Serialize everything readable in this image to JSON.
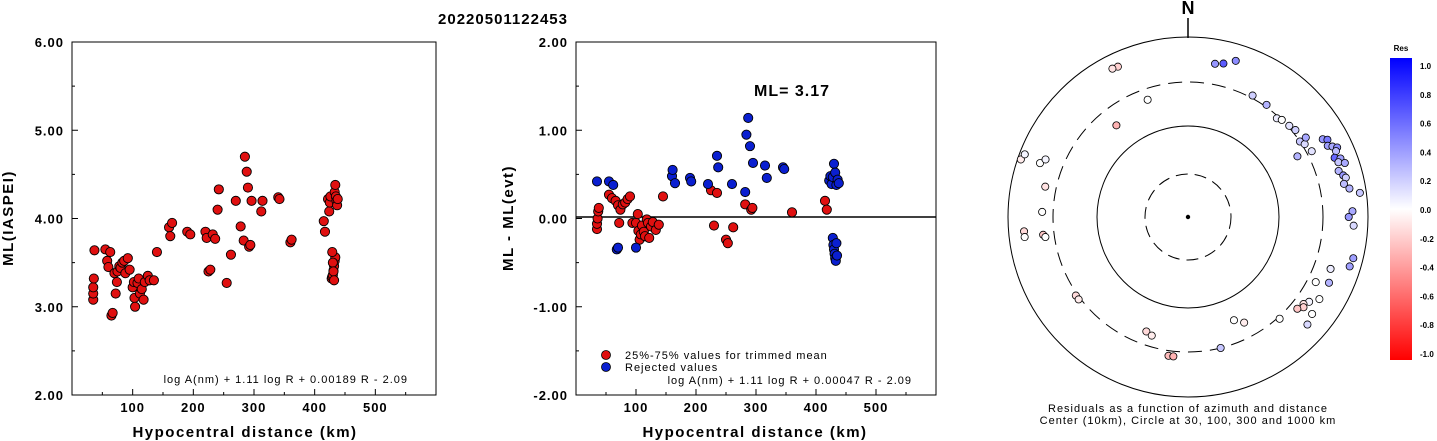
{
  "title": "20220501122453",
  "chart_data": [
    {
      "type": "scatter",
      "xlabel": "Hypocentral distance (km)",
      "ylabel": "ML(IASPEI)",
      "xlim": [
        0,
        600
      ],
      "ylim": [
        2.0,
        6.0
      ],
      "x_ticks": [
        "100",
        "200",
        "300",
        "400",
        "500"
      ],
      "y_ticks": [
        "6.00",
        "5.00",
        "4.00",
        "3.00",
        "2.00"
      ],
      "formula": "log A(nm) + 1.11 log R + 0.00189 R - 2.09",
      "series": [
        {
          "color": "#e01010",
          "points": [
            [
              35,
              3.08
            ],
            [
              35,
              3.15
            ],
            [
              35,
              3.22
            ],
            [
              36,
              3.32
            ],
            [
              37,
              3.64
            ],
            [
              55,
              3.65
            ],
            [
              58,
              3.52
            ],
            [
              60,
              3.45
            ],
            [
              63,
              3.62
            ],
            [
              65,
              2.9
            ],
            [
              67,
              2.93
            ],
            [
              70,
              3.38
            ],
            [
              72,
              3.15
            ],
            [
              74,
              3.28
            ],
            [
              75,
              3.4
            ],
            [
              78,
              3.46
            ],
            [
              80,
              3.44
            ],
            [
              83,
              3.5
            ],
            [
              86,
              3.52
            ],
            [
              88,
              3.38
            ],
            [
              92,
              3.55
            ],
            [
              95,
              3.42
            ],
            [
              100,
              3.22
            ],
            [
              102,
              3.28
            ],
            [
              103,
              3.1
            ],
            [
              104,
              3.0
            ],
            [
              108,
              3.27
            ],
            [
              110,
              3.32
            ],
            [
              112,
              3.15
            ],
            [
              115,
              3.2
            ],
            [
              118,
              3.08
            ],
            [
              120,
              3.28
            ],
            [
              125,
              3.35
            ],
            [
              128,
              3.3
            ],
            [
              135,
              3.3
            ],
            [
              140,
              3.62
            ],
            [
              160,
              3.9
            ],
            [
              162,
              3.8
            ],
            [
              165,
              3.95
            ],
            [
              190,
              3.85
            ],
            [
              195,
              3.82
            ],
            [
              220,
              3.85
            ],
            [
              222,
              3.78
            ],
            [
              225,
              3.4
            ],
            [
              228,
              3.42
            ],
            [
              232,
              3.82
            ],
            [
              236,
              3.77
            ],
            [
              240,
              4.1
            ],
            [
              242,
              4.33
            ],
            [
              255,
              3.27
            ],
            [
              262,
              3.59
            ],
            [
              270,
              4.2
            ],
            [
              278,
              3.91
            ],
            [
              283,
              3.75
            ],
            [
              285,
              4.7
            ],
            [
              288,
              4.53
            ],
            [
              290,
              4.35
            ],
            [
              292,
              3.68
            ],
            [
              294,
              3.7
            ],
            [
              296,
              4.2
            ],
            [
              312,
              4.08
            ],
            [
              314,
              4.2
            ],
            [
              340,
              4.24
            ],
            [
              342,
              4.22
            ],
            [
              360,
              3.73
            ],
            [
              362,
              3.76
            ],
            [
              415,
              3.97
            ],
            [
              417,
              3.85
            ],
            [
              422,
              4.22
            ],
            [
              424,
              4.08
            ],
            [
              425,
              4.18
            ],
            [
              426,
              4.25
            ],
            [
              428,
              3.32
            ],
            [
              429,
              3.34
            ],
            [
              430,
              3.36
            ],
            [
              431,
              3.41
            ],
            [
              432,
              3.46
            ],
            [
              433,
              3.52
            ],
            [
              434,
              3.56
            ],
            [
              429,
              3.62
            ],
            [
              430,
              3.5
            ],
            [
              431,
              3.4
            ],
            [
              432,
              3.3
            ],
            [
              433,
              4.3
            ],
            [
              434,
              4.38
            ],
            [
              435,
              4.25
            ],
            [
              436,
              4.2
            ],
            [
              437,
              4.15
            ],
            [
              438,
              4.22
            ]
          ]
        }
      ]
    },
    {
      "type": "scatter",
      "xlabel": "Hypocentral distance (km)",
      "ylabel": "ML - ML(evt)",
      "xlim": [
        0,
        600
      ],
      "ylim": [
        -2.0,
        2.0
      ],
      "x_ticks": [
        "100",
        "200",
        "300",
        "400",
        "500"
      ],
      "y_ticks": [
        "2.00",
        "1.00",
        "0.00",
        "-1.00",
        "-2.00"
      ],
      "annotation": "ML= 3.17",
      "legend": [
        "25%-75% values for trimmed mean",
        "Rejected values"
      ],
      "formula": "log A(nm) + 1.11 log R + 0.00047 R - 2.09",
      "series": [
        {
          "name": "25%-75% values for trimmed mean",
          "color": "#e01010",
          "points": [
            [
              35,
              -0.12
            ],
            [
              35,
              -0.06
            ],
            [
              36,
              0.0
            ],
            [
              37,
              0.08
            ],
            [
              38,
              0.12
            ],
            [
              55,
              0.27
            ],
            [
              60,
              0.23
            ],
            [
              66,
              0.2
            ],
            [
              70,
              0.15
            ],
            [
              72,
              -0.05
            ],
            [
              74,
              0.1
            ],
            [
              78,
              0.16
            ],
            [
              82,
              0.18
            ],
            [
              86,
              0.22
            ],
            [
              90,
              0.25
            ],
            [
              94,
              -0.05
            ],
            [
              100,
              -0.05
            ],
            [
              103,
              0.05
            ],
            [
              104,
              -0.14
            ],
            [
              106,
              -0.24
            ],
            [
              108,
              -0.18
            ],
            [
              110,
              -0.08
            ],
            [
              113,
              -0.15
            ],
            [
              115,
              -0.2
            ],
            [
              118,
              -0.01
            ],
            [
              120,
              -0.05
            ],
            [
              122,
              -0.22
            ],
            [
              125,
              -0.09
            ],
            [
              128,
              -0.04
            ],
            [
              133,
              -0.13
            ],
            [
              138,
              -0.07
            ],
            [
              145,
              0.25
            ],
            [
              225,
              0.32
            ],
            [
              230,
              -0.08
            ],
            [
              235,
              0.29
            ],
            [
              250,
              -0.24
            ],
            [
              253,
              -0.28
            ],
            [
              262,
              -0.1
            ],
            [
              282,
              0.16
            ],
            [
              292,
              0.1
            ],
            [
              294,
              0.12
            ],
            [
              360,
              0.07
            ],
            [
              415,
              0.2
            ],
            [
              418,
              0.1
            ]
          ]
        },
        {
          "name": "Rejected values",
          "color": "#0a1fd0",
          "points": [
            [
              35,
              0.42
            ],
            [
              55,
              0.42
            ],
            [
              62,
              0.38
            ],
            [
              68,
              -0.35
            ],
            [
              70,
              -0.33
            ],
            [
              100,
              -0.33
            ],
            [
              160,
              0.48
            ],
            [
              161,
              0.55
            ],
            [
              165,
              0.4
            ],
            [
              190,
              0.46
            ],
            [
              192,
              0.42
            ],
            [
              220,
              0.39
            ],
            [
              235,
              0.71
            ],
            [
              237,
              0.58
            ],
            [
              260,
              0.39
            ],
            [
              282,
              0.3
            ],
            [
              284,
              0.95
            ],
            [
              287,
              1.14
            ],
            [
              290,
              0.82
            ],
            [
              295,
              0.63
            ],
            [
              315,
              0.6
            ],
            [
              318,
              0.46
            ],
            [
              345,
              0.58
            ],
            [
              347,
              0.56
            ],
            [
              422,
              0.43
            ],
            [
              424,
              0.48
            ],
            [
              426,
              0.39
            ],
            [
              428,
              0.47
            ],
            [
              430,
              0.62
            ],
            [
              432,
              0.52
            ],
            [
              434,
              0.38
            ],
            [
              436,
              0.44
            ],
            [
              438,
              0.4
            ],
            [
              428,
              -0.22
            ],
            [
              429,
              -0.3
            ],
            [
              430,
              -0.35
            ],
            [
              431,
              -0.4
            ],
            [
              432,
              -0.45
            ],
            [
              433,
              -0.48
            ],
            [
              434,
              -0.28
            ],
            [
              435,
              -0.42
            ]
          ]
        }
      ]
    },
    {
      "type": "scatter",
      "subtype": "polar-residuals",
      "north_label": "N",
      "caption_line1": "Residuals as a function of azimuth and distance",
      "caption_line2": "Center (10km), Circle at 30, 100, 300 and 1000 km",
      "rings_km": [
        30,
        100,
        300,
        1000
      ],
      "colorbar": {
        "title": "Res",
        "labels": [
          "1.0",
          "0.8",
          "0.6",
          "0.4",
          "0.2",
          "0.0",
          "-0.2",
          "-0.4",
          "-0.6",
          "-0.8",
          "-1.0"
        ],
        "min": -1.0,
        "max": 1.0,
        "low_color": "#ff0000",
        "mid_color": "#ffffff",
        "high_color": "#0000ff"
      },
      "points": [
        {
          "az": 335,
          "dist": 780,
          "res": -0.25
        },
        {
          "az": 333,
          "dist": 790,
          "res": -0.15
        },
        {
          "az": 10,
          "dist": 620,
          "res": 0.55
        },
        {
          "az": 13,
          "dist": 650,
          "res": 0.85
        },
        {
          "az": 17,
          "dist": 740,
          "res": 0.6
        },
        {
          "az": 28,
          "dist": 340,
          "res": 0.25
        },
        {
          "az": 35,
          "dist": 330,
          "res": 0.4
        },
        {
          "az": 42,
          "dist": 290,
          "res": 0.1
        },
        {
          "az": 44,
          "dist": 300,
          "res": 0.0
        },
        {
          "az": 48,
          "dist": 320,
          "res": 0.15
        },
        {
          "az": 51,
          "dist": 350,
          "res": 0.25
        },
        {
          "az": 56,
          "dist": 300,
          "res": 0.3
        },
        {
          "az": 58,
          "dist": 340,
          "res": 0.2
        },
        {
          "az": 56,
          "dist": 410,
          "res": 0.45
        },
        {
          "az": 62,
          "dist": 380,
          "res": 0.15
        },
        {
          "az": 61,
          "dist": 255,
          "res": 0.4
        },
        {
          "az": 341,
          "dist": 250,
          "res": 0.0
        },
        {
          "az": 322,
          "dist": 215,
          "res": -0.4
        },
        {
          "az": 60,
          "dist": 620,
          "res": 0.55
        },
        {
          "az": 61,
          "dist": 680,
          "res": 0.7
        },
        {
          "az": 63,
          "dist": 640,
          "res": 0.5
        },
        {
          "az": 64,
          "dist": 700,
          "res": 0.45
        },
        {
          "az": 65,
          "dist": 760,
          "res": 0.6
        },
        {
          "az": 66,
          "dist": 720,
          "res": 0.35
        },
        {
          "az": 68,
          "dist": 660,
          "res": 0.8
        },
        {
          "az": 69,
          "dist": 740,
          "res": 0.5
        },
        {
          "az": 70,
          "dist": 690,
          "res": 0.3
        },
        {
          "az": 71,
          "dist": 780,
          "res": 0.45
        },
        {
          "az": 73,
          "dist": 650,
          "res": 0.4
        },
        {
          "az": 75,
          "dist": 700,
          "res": 0.55
        },
        {
          "az": 76,
          "dist": 730,
          "res": 0.25
        },
        {
          "az": 78,
          "dist": 680,
          "res": 0.35
        },
        {
          "az": 80,
          "dist": 750,
          "res": 0.4
        },
        {
          "az": 82,
          "dist": 900,
          "res": 0.3
        },
        {
          "az": 88,
          "dist": 760,
          "res": 0.45
        },
        {
          "az": 90,
          "dist": 700,
          "res": 0.55
        },
        {
          "az": 93,
          "dist": 780,
          "res": 0.2
        },
        {
          "az": 290,
          "dist": 650,
          "res": 0.0
        },
        {
          "az": 292,
          "dist": 590,
          "res": 0.05
        },
        {
          "az": 282,
          "dist": 470,
          "res": -0.15
        },
        {
          "az": 272,
          "dist": 470,
          "res": 0.0
        },
        {
          "az": 263,
          "dist": 470,
          "res": -0.3
        },
        {
          "az": 262,
          "dist": 440,
          "res": 0.0
        },
        {
          "az": 289,
          "dist": 950,
          "res": -0.1
        },
        {
          "az": 291,
          "dist": 920,
          "res": 0.05
        },
        {
          "az": 265,
          "dist": 760,
          "res": -0.2
        },
        {
          "az": 263,
          "dist": 760,
          "res": 0.0
        },
        {
          "az": 235,
          "dist": 330,
          "res": -0.2
        },
        {
          "az": 233,
          "dist": 330,
          "res": -0.1
        },
        {
          "az": 200,
          "dist": 240,
          "res": -0.2
        },
        {
          "az": 197,
          "dist": 250,
          "res": -0.1
        },
        {
          "az": 188,
          "dist": 380,
          "res": -0.35
        },
        {
          "az": 186,
          "dist": 380,
          "res": -0.4
        },
        {
          "az": 152,
          "dist": 230,
          "res": -0.1
        },
        {
          "az": 156,
          "dist": 200,
          "res": 0.0
        },
        {
          "az": 166,
          "dist": 300,
          "res": 0.3
        },
        {
          "az": 138,
          "dist": 330,
          "res": 0.0
        },
        {
          "az": 125,
          "dist": 500,
          "res": 0.05
        },
        {
          "az": 127,
          "dist": 450,
          "res": -0.15
        },
        {
          "az": 128,
          "dist": 480,
          "res": -0.25
        },
        {
          "az": 130,
          "dist": 420,
          "res": -0.3
        },
        {
          "az": 122,
          "dist": 610,
          "res": 0.0
        },
        {
          "az": 128,
          "dist": 650,
          "res": 0.0
        },
        {
          "az": 132,
          "dist": 700,
          "res": 0.2
        },
        {
          "az": 117,
          "dist": 430,
          "res": 0.0
        },
        {
          "az": 110,
          "dist": 560,
          "res": 0.1
        },
        {
          "az": 115,
          "dist": 620,
          "res": 0.4
        },
        {
          "az": 107,
          "dist": 830,
          "res": 0.5
        },
        {
          "az": 104,
          "dist": 850,
          "res": 0.5
        }
      ]
    }
  ]
}
